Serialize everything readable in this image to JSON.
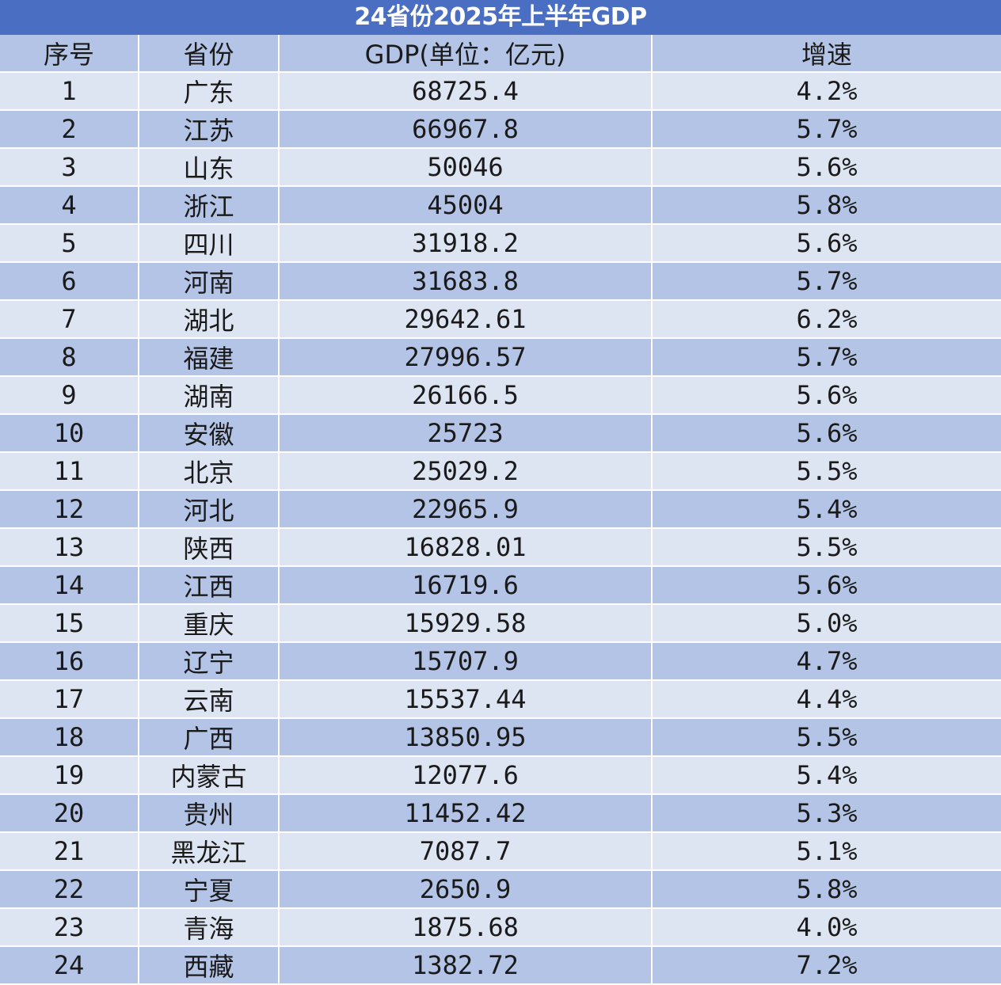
{
  "chart_data": {
    "type": "table",
    "title": "24省份2025年上半年GDP",
    "columns": [
      "序号",
      "省份",
      "GDP(单位：亿元)",
      "增速"
    ],
    "rows": [
      [
        "1",
        "广东",
        "68725.4",
        "4.2%"
      ],
      [
        "2",
        "江苏",
        "66967.8",
        "5.7%"
      ],
      [
        "3",
        "山东",
        "50046",
        "5.6%"
      ],
      [
        "4",
        "浙江",
        "45004",
        "5.8%"
      ],
      [
        "5",
        "四川",
        "31918.2",
        "5.6%"
      ],
      [
        "6",
        "河南",
        "31683.8",
        "5.7%"
      ],
      [
        "7",
        "湖北",
        "29642.61",
        "6.2%"
      ],
      [
        "8",
        "福建",
        "27996.57",
        "5.7%"
      ],
      [
        "9",
        "湖南",
        "26166.5",
        "5.6%"
      ],
      [
        "10",
        "安徽",
        "25723",
        "5.6%"
      ],
      [
        "11",
        "北京",
        "25029.2",
        "5.5%"
      ],
      [
        "12",
        "河北",
        "22965.9",
        "5.4%"
      ],
      [
        "13",
        "陕西",
        "16828.01",
        "5.5%"
      ],
      [
        "14",
        "江西",
        "16719.6",
        "5.6%"
      ],
      [
        "15",
        "重庆",
        "15929.58",
        "5.0%"
      ],
      [
        "16",
        "辽宁",
        "15707.9",
        "4.7%"
      ],
      [
        "17",
        "云南",
        "15537.44",
        "4.4%"
      ],
      [
        "18",
        "广西",
        "13850.95",
        "5.5%"
      ],
      [
        "19",
        "内蒙古",
        "12077.6",
        "5.4%"
      ],
      [
        "20",
        "贵州",
        "11452.42",
        "5.3%"
      ],
      [
        "21",
        "黑龙江",
        "7087.7",
        "5.1%"
      ],
      [
        "22",
        "宁夏",
        "2650.9",
        "5.8%"
      ],
      [
        "23",
        "青海",
        "1875.68",
        "4.0%"
      ],
      [
        "24",
        "西藏",
        "1382.72",
        "7.2%"
      ]
    ]
  },
  "colors": {
    "title_bg": "#4a6ec1",
    "title_text": "#ffffff",
    "row_light": "#dde4f2",
    "row_dark": "#b4c4e6",
    "text": "#1a1a1a"
  }
}
